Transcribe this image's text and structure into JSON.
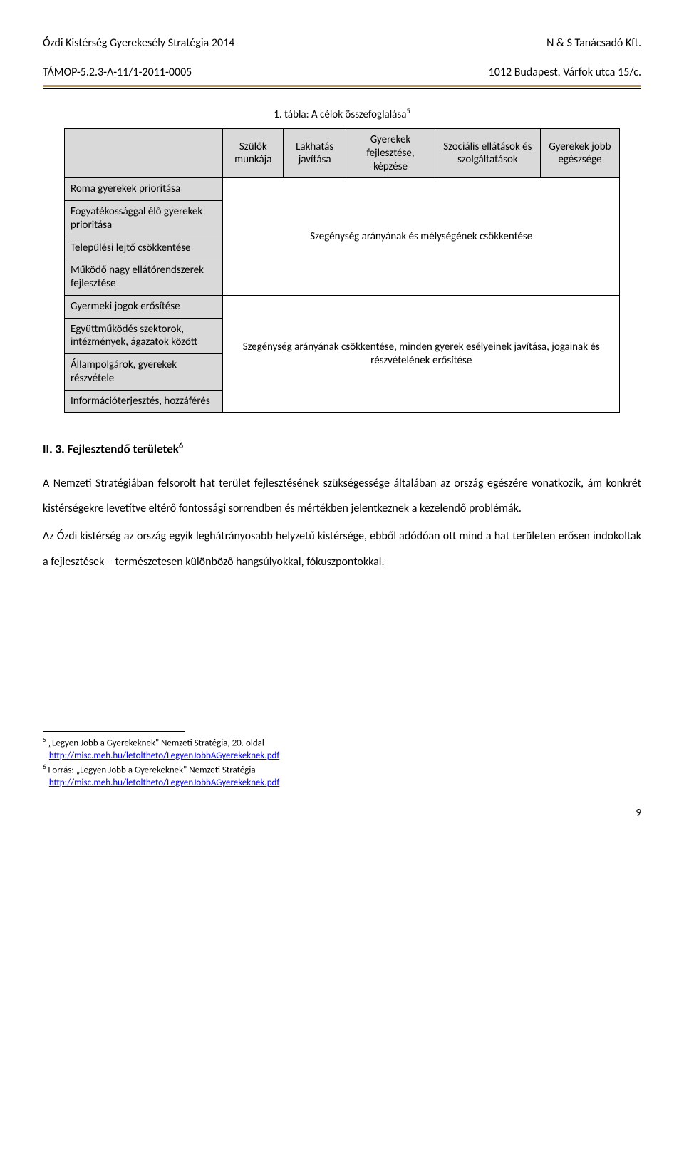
{
  "header": {
    "left_line1": "Ózdi Kistérség Gyerekesély Stratégia 2014",
    "left_line2": "TÁMOP-5.2.3-A-11/1-2011-0005",
    "right_line1": "N & S Tanácsadó Kft.",
    "right_line2": "1012 Budapest, Várfok utca 15/c."
  },
  "table": {
    "caption": "1. tábla: A célok összefoglalása",
    "caption_sup": "5",
    "col1": "Szülők munkája",
    "col2": "Lakhatás javítása",
    "col3": "Gyerekek fejlesztése, képzése",
    "col4": "Szociális ellátások és szolgáltatások",
    "col5": "Gyerekek jobb egészsége",
    "row_labels": [
      "Roma gyerekek prioritása",
      "Fogyatékossággal élő gyerekek prioritása",
      "Települési lejtő csökkentése",
      "Működő nagy ellátórendszerek fejlesztése",
      "Gyermeki jogok erősítése",
      "Együttműködés szektorok, intézmények, ágazatok között",
      "Állampolgárok, gyerekek részvétele",
      "Információterjesztés, hozzáférés"
    ],
    "merged_top": "Szegénység arányának és mélységének csökkentése",
    "merged_bottom": "Szegénység arányának csökkentése, minden gyerek esélyeinek javítása, jogainak és részvételének erősítése"
  },
  "section_heading": "II. 3. Fejlesztendő területek",
  "section_heading_sup": "6",
  "paragraphs": [
    "A Nemzeti Stratégiában felsorolt hat terület fejlesztésének szükségessége általában az ország egészére vonatkozik, ám konkrét kistérségekre levetítve eltérő fontossági sorrendben és mértékben jelentkeznek a kezelendő problémák.",
    "Az Ózdi kistérség az ország egyik leghátrányosabb helyzetű kistérsége, ebből adódóan ott mind a hat területen erősen indokoltak a fejlesztések – természetesen különböző hangsúlyokkal, fókuszpontokkal."
  ],
  "footnotes": {
    "f5_sup": "5",
    "f5_text": " „Legyen Jobb a Gyerekeknek\" Nemzeti Stratégia, 20. oldal",
    "f5_link": "http://misc.meh.hu/letoltheto/LegyenJobbAGyerekeknek.pdf",
    "f6_sup": "6",
    "f6_text": " Forrás: „Legyen Jobb a Gyerekeknek\" Nemzeti Stratégia",
    "f6_link": "http://misc.meh.hu/letoltheto/LegyenJobbAGyerekeknek.pdf"
  },
  "page_number": "9"
}
